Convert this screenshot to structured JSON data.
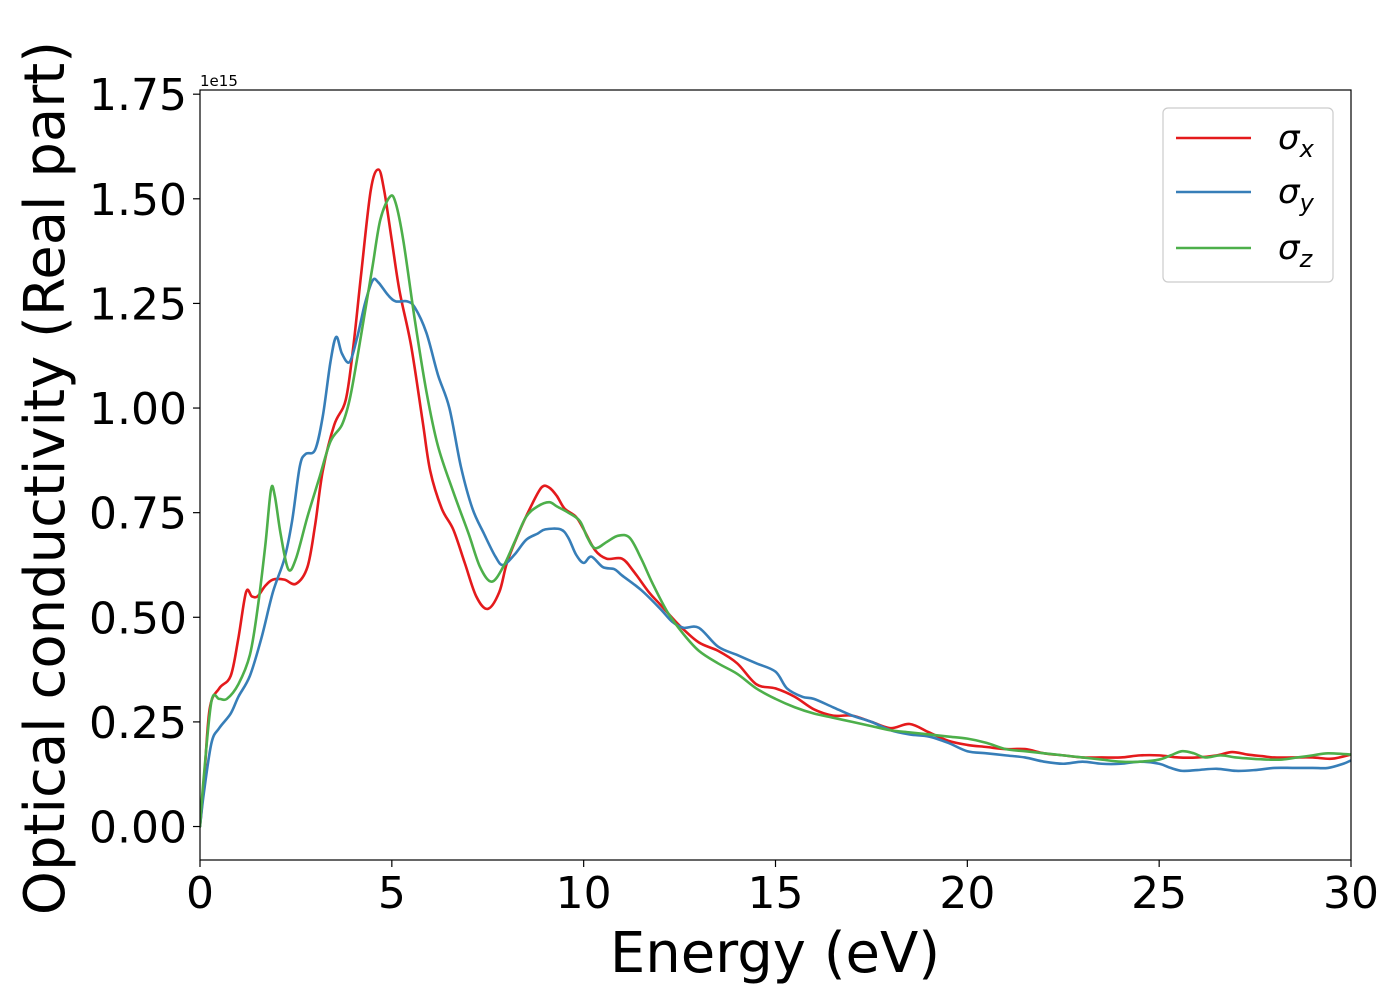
{
  "chart_data": {
    "type": "line",
    "title": "",
    "xlabel": "Energy (eV)",
    "ylabel": "Optical conductivity (Real part)",
    "y_offset_label": "1e15",
    "xlim": [
      0,
      30
    ],
    "ylim": [
      -0.08,
      1.76
    ],
    "x_ticks": [
      0,
      5,
      10,
      15,
      20,
      25,
      30
    ],
    "x_tick_labels": [
      "0",
      "5",
      "10",
      "15",
      "20",
      "25",
      "30"
    ],
    "y_ticks": [
      0,
      0.25,
      0.5,
      0.75,
      1.0,
      1.25,
      1.5,
      1.75
    ],
    "y_tick_labels": [
      "0.00",
      "0.25",
      "0.50",
      "0.75",
      "1.00",
      "1.25",
      "1.50",
      "1.75"
    ],
    "grid": false,
    "legend": {
      "position": "top-right"
    },
    "series": [
      {
        "name": "σx",
        "symbol": "σ",
        "subscript": "x",
        "color": "#e41a1c",
        "points": [
          [
            0,
            0
          ],
          [
            0.1,
            0.1
          ],
          [
            0.25,
            0.28
          ],
          [
            0.5,
            0.33
          ],
          [
            0.8,
            0.36
          ],
          [
            1.0,
            0.45
          ],
          [
            1.2,
            0.56
          ],
          [
            1.35,
            0.55
          ],
          [
            1.5,
            0.55
          ],
          [
            1.7,
            0.575
          ],
          [
            1.9,
            0.59
          ],
          [
            2.2,
            0.59
          ],
          [
            2.5,
            0.58
          ],
          [
            2.8,
            0.62
          ],
          [
            3.0,
            0.72
          ],
          [
            3.2,
            0.85
          ],
          [
            3.5,
            0.96
          ],
          [
            3.8,
            1.02
          ],
          [
            4.0,
            1.15
          ],
          [
            4.2,
            1.32
          ],
          [
            4.45,
            1.52
          ],
          [
            4.65,
            1.57
          ],
          [
            4.8,
            1.52
          ],
          [
            5.0,
            1.4
          ],
          [
            5.2,
            1.28
          ],
          [
            5.5,
            1.15
          ],
          [
            5.8,
            0.97
          ],
          [
            6.0,
            0.85
          ],
          [
            6.3,
            0.76
          ],
          [
            6.6,
            0.71
          ],
          [
            6.9,
            0.63
          ],
          [
            7.2,
            0.55
          ],
          [
            7.5,
            0.52
          ],
          [
            7.8,
            0.56
          ],
          [
            8.0,
            0.63
          ],
          [
            8.3,
            0.7
          ],
          [
            8.6,
            0.76
          ],
          [
            8.9,
            0.81
          ],
          [
            9.1,
            0.81
          ],
          [
            9.3,
            0.79
          ],
          [
            9.5,
            0.76
          ],
          [
            9.8,
            0.74
          ],
          [
            10.0,
            0.71
          ],
          [
            10.3,
            0.66
          ],
          [
            10.6,
            0.64
          ],
          [
            11.0,
            0.64
          ],
          [
            11.3,
            0.61
          ],
          [
            11.7,
            0.56
          ],
          [
            12.0,
            0.53
          ],
          [
            12.5,
            0.48
          ],
          [
            13.0,
            0.44
          ],
          [
            13.5,
            0.42
          ],
          [
            14.0,
            0.39
          ],
          [
            14.5,
            0.34
          ],
          [
            15.0,
            0.33
          ],
          [
            15.5,
            0.31
          ],
          [
            16.0,
            0.28
          ],
          [
            16.5,
            0.265
          ],
          [
            17.0,
            0.265
          ],
          [
            17.5,
            0.25
          ],
          [
            18.0,
            0.235
          ],
          [
            18.5,
            0.245
          ],
          [
            19.0,
            0.225
          ],
          [
            19.5,
            0.205
          ],
          [
            20.0,
            0.195
          ],
          [
            20.5,
            0.19
          ],
          [
            21.0,
            0.185
          ],
          [
            21.5,
            0.185
          ],
          [
            22.0,
            0.175
          ],
          [
            22.5,
            0.17
          ],
          [
            23.0,
            0.165
          ],
          [
            23.5,
            0.165
          ],
          [
            24.0,
            0.165
          ],
          [
            24.5,
            0.17
          ],
          [
            25.0,
            0.17
          ],
          [
            25.5,
            0.165
          ],
          [
            26.0,
            0.165
          ],
          [
            26.5,
            0.17
          ],
          [
            26.9,
            0.178
          ],
          [
            27.3,
            0.172
          ],
          [
            27.7,
            0.168
          ],
          [
            28.0,
            0.165
          ],
          [
            28.5,
            0.165
          ],
          [
            29.0,
            0.165
          ],
          [
            29.5,
            0.162
          ],
          [
            30.0,
            0.172
          ]
        ]
      },
      {
        "name": "σy",
        "symbol": "σ",
        "subscript": "y",
        "color": "#377eb8",
        "points": [
          [
            0,
            0
          ],
          [
            0.1,
            0.08
          ],
          [
            0.3,
            0.2
          ],
          [
            0.5,
            0.235
          ],
          [
            0.8,
            0.27
          ],
          [
            1.0,
            0.31
          ],
          [
            1.3,
            0.36
          ],
          [
            1.6,
            0.45
          ],
          [
            1.9,
            0.56
          ],
          [
            2.2,
            0.64
          ],
          [
            2.4,
            0.73
          ],
          [
            2.6,
            0.86
          ],
          [
            2.75,
            0.89
          ],
          [
            3.0,
            0.9
          ],
          [
            3.2,
            0.98
          ],
          [
            3.4,
            1.11
          ],
          [
            3.55,
            1.17
          ],
          [
            3.7,
            1.13
          ],
          [
            3.9,
            1.11
          ],
          [
            4.1,
            1.17
          ],
          [
            4.3,
            1.25
          ],
          [
            4.5,
            1.305
          ],
          [
            4.65,
            1.3
          ],
          [
            4.9,
            1.27
          ],
          [
            5.1,
            1.255
          ],
          [
            5.4,
            1.255
          ],
          [
            5.6,
            1.24
          ],
          [
            5.9,
            1.18
          ],
          [
            6.2,
            1.08
          ],
          [
            6.5,
            1.0
          ],
          [
            6.8,
            0.86
          ],
          [
            7.1,
            0.76
          ],
          [
            7.4,
            0.7
          ],
          [
            7.7,
            0.645
          ],
          [
            7.9,
            0.625
          ],
          [
            8.2,
            0.65
          ],
          [
            8.5,
            0.685
          ],
          [
            8.8,
            0.7
          ],
          [
            9.0,
            0.71
          ],
          [
            9.4,
            0.71
          ],
          [
            9.6,
            0.69
          ],
          [
            9.8,
            0.65
          ],
          [
            10.0,
            0.63
          ],
          [
            10.2,
            0.645
          ],
          [
            10.5,
            0.62
          ],
          [
            10.8,
            0.615
          ],
          [
            11.0,
            0.6
          ],
          [
            11.5,
            0.565
          ],
          [
            12.0,
            0.52
          ],
          [
            12.3,
            0.49
          ],
          [
            12.6,
            0.475
          ],
          [
            13.0,
            0.475
          ],
          [
            13.5,
            0.43
          ],
          [
            14.0,
            0.41
          ],
          [
            14.5,
            0.39
          ],
          [
            15.0,
            0.37
          ],
          [
            15.3,
            0.33
          ],
          [
            15.7,
            0.31
          ],
          [
            16.0,
            0.305
          ],
          [
            16.5,
            0.285
          ],
          [
            17.0,
            0.265
          ],
          [
            17.5,
            0.25
          ],
          [
            18.0,
            0.23
          ],
          [
            18.5,
            0.22
          ],
          [
            19.0,
            0.215
          ],
          [
            19.5,
            0.2
          ],
          [
            20.0,
            0.18
          ],
          [
            20.5,
            0.175
          ],
          [
            21.0,
            0.17
          ],
          [
            21.5,
            0.165
          ],
          [
            22.0,
            0.155
          ],
          [
            22.5,
            0.15
          ],
          [
            23.0,
            0.155
          ],
          [
            23.5,
            0.15
          ],
          [
            24.0,
            0.15
          ],
          [
            24.5,
            0.155
          ],
          [
            25.0,
            0.15
          ],
          [
            25.3,
            0.14
          ],
          [
            25.6,
            0.133
          ],
          [
            26.0,
            0.135
          ],
          [
            26.5,
            0.138
          ],
          [
            27.0,
            0.133
          ],
          [
            27.5,
            0.135
          ],
          [
            28.0,
            0.14
          ],
          [
            28.5,
            0.14
          ],
          [
            29.0,
            0.14
          ],
          [
            29.4,
            0.14
          ],
          [
            29.8,
            0.15
          ],
          [
            30.0,
            0.158
          ]
        ]
      },
      {
        "name": "σz",
        "symbol": "σ",
        "subscript": "z",
        "color": "#4daf4a",
        "points": [
          [
            0,
            0
          ],
          [
            0.1,
            0.12
          ],
          [
            0.3,
            0.3
          ],
          [
            0.5,
            0.305
          ],
          [
            0.7,
            0.305
          ],
          [
            1.0,
            0.34
          ],
          [
            1.3,
            0.41
          ],
          [
            1.5,
            0.52
          ],
          [
            1.7,
            0.67
          ],
          [
            1.85,
            0.805
          ],
          [
            1.95,
            0.79
          ],
          [
            2.1,
            0.7
          ],
          [
            2.3,
            0.615
          ],
          [
            2.5,
            0.64
          ],
          [
            2.8,
            0.74
          ],
          [
            3.1,
            0.83
          ],
          [
            3.4,
            0.92
          ],
          [
            3.7,
            0.96
          ],
          [
            3.9,
            1.02
          ],
          [
            4.1,
            1.12
          ],
          [
            4.3,
            1.23
          ],
          [
            4.5,
            1.34
          ],
          [
            4.7,
            1.45
          ],
          [
            4.95,
            1.505
          ],
          [
            5.1,
            1.49
          ],
          [
            5.3,
            1.4
          ],
          [
            5.6,
            1.21
          ],
          [
            5.9,
            1.04
          ],
          [
            6.2,
            0.91
          ],
          [
            6.6,
            0.8
          ],
          [
            7.0,
            0.7
          ],
          [
            7.3,
            0.62
          ],
          [
            7.6,
            0.585
          ],
          [
            7.9,
            0.62
          ],
          [
            8.2,
            0.68
          ],
          [
            8.5,
            0.74
          ],
          [
            8.8,
            0.765
          ],
          [
            9.1,
            0.775
          ],
          [
            9.3,
            0.765
          ],
          [
            9.6,
            0.75
          ],
          [
            9.9,
            0.73
          ],
          [
            10.1,
            0.69
          ],
          [
            10.3,
            0.665
          ],
          [
            10.6,
            0.68
          ],
          [
            10.9,
            0.695
          ],
          [
            11.2,
            0.69
          ],
          [
            11.5,
            0.64
          ],
          [
            11.8,
            0.58
          ],
          [
            12.2,
            0.51
          ],
          [
            12.6,
            0.46
          ],
          [
            13.0,
            0.42
          ],
          [
            13.5,
            0.39
          ],
          [
            14.0,
            0.365
          ],
          [
            14.5,
            0.33
          ],
          [
            15.0,
            0.305
          ],
          [
            15.5,
            0.285
          ],
          [
            16.0,
            0.27
          ],
          [
            16.5,
            0.26
          ],
          [
            17.0,
            0.25
          ],
          [
            17.5,
            0.24
          ],
          [
            18.0,
            0.23
          ],
          [
            18.5,
            0.225
          ],
          [
            19.0,
            0.22
          ],
          [
            19.5,
            0.215
          ],
          [
            20.0,
            0.21
          ],
          [
            20.5,
            0.2
          ],
          [
            21.0,
            0.185
          ],
          [
            21.5,
            0.18
          ],
          [
            22.0,
            0.175
          ],
          [
            22.5,
            0.17
          ],
          [
            23.0,
            0.165
          ],
          [
            23.5,
            0.16
          ],
          [
            24.0,
            0.155
          ],
          [
            24.5,
            0.155
          ],
          [
            25.0,
            0.16
          ],
          [
            25.3,
            0.17
          ],
          [
            25.6,
            0.18
          ],
          [
            25.9,
            0.175
          ],
          [
            26.2,
            0.165
          ],
          [
            26.6,
            0.17
          ],
          [
            27.0,
            0.165
          ],
          [
            27.4,
            0.162
          ],
          [
            27.8,
            0.16
          ],
          [
            28.2,
            0.16
          ],
          [
            28.6,
            0.165
          ],
          [
            29.0,
            0.17
          ],
          [
            29.4,
            0.175
          ],
          [
            30.0,
            0.172
          ]
        ]
      }
    ]
  }
}
